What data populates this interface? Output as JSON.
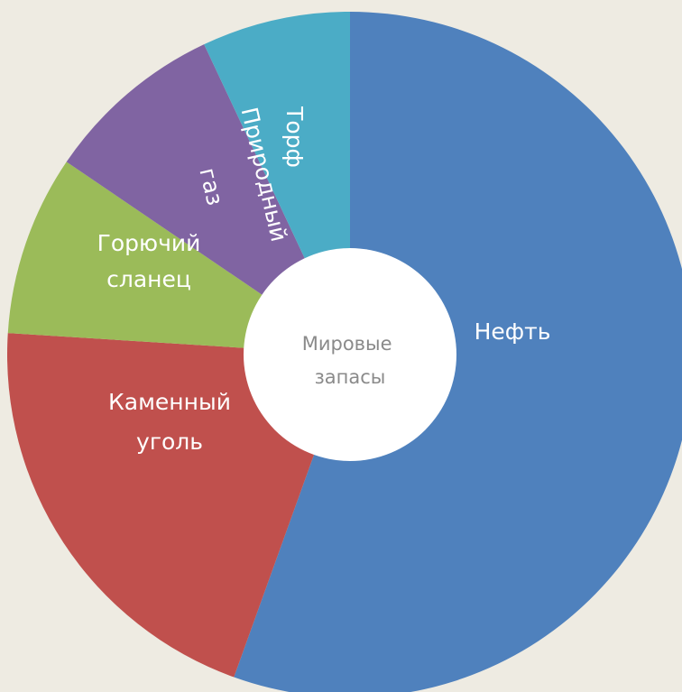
{
  "chart_data": {
    "type": "pie",
    "style": "donut",
    "title": "",
    "center_label": [
      "Мировые",
      "запасы"
    ],
    "slices": [
      {
        "name": "Нефть",
        "label_lines": [
          "Нефть"
        ],
        "value": 55.5,
        "color": "#4f81bd"
      },
      {
        "name": "Каменный уголь",
        "label_lines": [
          "Каменный",
          "уголь"
        ],
        "value": 20.5,
        "color": "#c0504d"
      },
      {
        "name": "Горючий сланец",
        "label_lines": [
          "Горючий",
          "сланец"
        ],
        "value": 8.5,
        "color": "#9bbb59"
      },
      {
        "name": "Природный газ",
        "label_lines": [
          "Природный",
          "газ"
        ],
        "value": 8.5,
        "color": "#8064a2"
      },
      {
        "name": "Торф",
        "label_lines": [
          "Торф"
        ],
        "value": 7.0,
        "color": "#4bacc6"
      }
    ],
    "start_angle_deg": 0,
    "direction": "clockwise",
    "legend": "none"
  }
}
